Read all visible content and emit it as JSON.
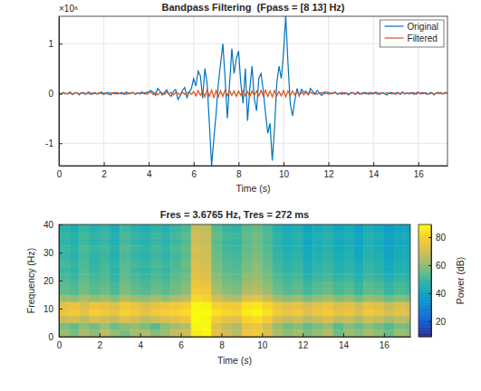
{
  "chart_data": [
    {
      "type": "line",
      "title": "Bandpass Filtering  (Fpass = [8 13] Hz)",
      "x_label": "Time (s)",
      "y_multiplier": "×10⁶",
      "x": [
        0,
        0.1,
        0.2,
        0.3,
        0.4,
        0.5,
        0.6,
        0.7,
        0.8,
        0.9,
        1,
        1.1,
        1.2,
        1.3,
        1.4,
        1.5,
        1.6,
        1.7,
        1.8,
        1.9,
        2,
        2.1,
        2.2,
        2.3,
        2.4,
        2.5,
        2.6,
        2.7,
        2.8,
        2.9,
        3,
        3.1,
        3.2,
        3.3,
        3.4,
        3.5,
        3.6,
        3.7,
        3.8,
        3.9,
        4,
        4.1,
        4.2,
        4.3,
        4.4,
        4.5,
        4.6,
        4.7,
        4.8,
        4.9,
        5,
        5.1,
        5.2,
        5.3,
        5.4,
        5.5,
        5.6,
        5.7,
        5.8,
        5.9,
        6,
        6.1,
        6.2,
        6.3,
        6.4,
        6.5,
        6.6,
        6.7,
        6.8,
        6.9,
        7,
        7.1,
        7.2,
        7.3,
        7.4,
        7.5,
        7.6,
        7.7,
        7.8,
        7.9,
        8,
        8.1,
        8.2,
        8.3,
        8.4,
        8.5,
        8.6,
        8.7,
        8.8,
        8.9,
        9,
        9.1,
        9.2,
        9.3,
        9.4,
        9.5,
        9.6,
        9.7,
        9.8,
        9.9,
        10,
        10.1,
        10.2,
        10.3,
        10.4,
        10.5,
        10.6,
        10.7,
        10.8,
        10.9,
        11,
        11.1,
        11.2,
        11.3,
        11.4,
        11.5,
        11.6,
        11.7,
        11.8,
        11.9,
        12,
        12.1,
        12.2,
        12.3,
        12.4,
        12.5,
        12.6,
        12.7,
        12.8,
        12.9,
        13,
        13.1,
        13.2,
        13.3,
        13.4,
        13.5,
        13.6,
        13.7,
        13.8,
        13.9,
        14,
        14.1,
        14.2,
        14.3,
        14.4,
        14.5,
        14.6,
        14.7,
        14.8,
        14.9,
        15,
        15.1,
        15.2,
        15.3,
        15.4,
        15.5,
        15.6,
        15.7,
        15.8,
        15.9,
        16,
        16.1,
        16.2,
        16.3,
        16.4,
        16.5,
        16.6,
        16.7,
        16.8,
        16.9,
        17,
        17.1,
        17.2,
        17.3
      ],
      "series": [
        {
          "name": "Original",
          "color": "#0072bd",
          "values": [
            0.01,
            -0.02,
            0.02,
            0,
            -0.01,
            0.03,
            -0.02,
            0.01,
            0.02,
            -0.03,
            0.02,
            0,
            -0.02,
            0.03,
            0.01,
            -0.02,
            0.02,
            -0.01,
            0,
            0.03,
            -0.02,
            0.01,
            0.02,
            -0.03,
            0.01,
            0.02,
            -0.01,
            0,
            0.02,
            -0.02,
            0.03,
            -0.01,
            0.01,
            0.02,
            -0.02,
            0.01,
            0,
            0.03,
            -0.01,
            0.02,
            0.03,
            0.06,
            0.02,
            -0.04,
            0.1,
            0.05,
            -0.03,
            0.02,
            0.07,
            -0.02,
            -0.06,
            0.04,
            0.08,
            -0.12,
            -0.05,
            0.06,
            0.12,
            -0.08,
            0.03,
            0.1,
            0.3,
            0.15,
            0.45,
            0.35,
            -0.1,
            0.5,
            0.2,
            -0.6,
            -1.45,
            -0.9,
            -0.4,
            0.2,
            0.6,
            1.0,
            0.3,
            -0.5,
            0.2,
            0.9,
            0.4,
            0.7,
            0.85,
            0.2,
            -0.2,
            0.5,
            -0.55,
            0.1,
            0.55,
            -0.1,
            -0.35,
            0.3,
            0.4,
            0.05,
            -0.4,
            -0.8,
            -0.6,
            -1.35,
            -0.7,
            0.2,
            0.55,
            0.3,
            0.8,
            1.55,
            0.6,
            -0.2,
            -0.45,
            -0.15,
            0.1,
            -0.05,
            0.08,
            0.02,
            0.05,
            -0.03,
            0.1,
            0.04,
            -0.02,
            0.06,
            0.01,
            -0.04,
            0.03,
            0.02,
            0.02,
            -0.01,
            0.01,
            0.03,
            -0.02,
            0,
            0.02,
            -0.01,
            0.01,
            -0.03,
            0.02,
            0.01,
            -0.02,
            0.03,
            0,
            -0.01,
            0.02,
            0.01,
            -0.02,
            0.02,
            -0.01,
            0.03,
            0.01,
            -0.02,
            0.02,
            0,
            -0.03,
            0.01,
            0.02,
            -0.01,
            0.01,
            0.02,
            -0.02,
            0.03,
            -0.01,
            0.01,
            0,
            0.02,
            -0.02,
            0.01,
            0.03,
            -0.01,
            0.02,
            0,
            -0.02,
            0.01,
            0.02,
            -0.03,
            0.01,
            0.02,
            0,
            -0.01,
            0.02,
            0.01
          ]
        },
        {
          "name": "Filtered",
          "color": "#d95319",
          "values": [
            0.01,
            -0.01,
            0.02,
            -0.01,
            0,
            0.01,
            -0.02,
            0.01,
            0.01,
            -0.01,
            0,
            0.02,
            -0.01,
            0.01,
            -0.02,
            0.01,
            0,
            -0.01,
            0.02,
            -0.01,
            0.01,
            0,
            -0.02,
            0.01,
            0.01,
            -0.01,
            0.02,
            0,
            -0.01,
            0.01,
            -0.02,
            0.01,
            0,
            0.02,
            -0.01,
            0.01,
            -0.01,
            0,
            0.02,
            -0.02,
            0.01,
            0.03,
            -0.02,
            0.02,
            -0.03,
            0.02,
            0.01,
            -0.02,
            0.03,
            -0.01,
            0.02,
            -0.03,
            0.02,
            0.01,
            -0.03,
            0.03,
            -0.02,
            0.01,
            0.03,
            -0.02,
            0.04,
            -0.05,
            0.06,
            -0.04,
            0.05,
            -0.07,
            0.08,
            -0.06,
            0.07,
            -0.08,
            0.06,
            -0.07,
            0.05,
            -0.06,
            0.07,
            -0.05,
            0.06,
            -0.04,
            0.05,
            -0.06,
            0.05,
            -0.04,
            0.06,
            -0.05,
            0.04,
            -0.06,
            0.05,
            -0.04,
            0.05,
            -0.05,
            0.06,
            -0.05,
            0.07,
            -0.06,
            0.05,
            -0.07,
            0.06,
            -0.05,
            0.04,
            -0.05,
            0.06,
            -0.07,
            0.05,
            -0.04,
            0.05,
            -0.03,
            0.04,
            -0.03,
            0.02,
            -0.03,
            0.02,
            -0.02,
            0.03,
            -0.01,
            0.02,
            -0.02,
            0.01,
            0.02,
            -0.01,
            0.01,
            -0.02,
            0.01,
            0,
            0.02,
            -0.01,
            0.01,
            -0.02,
            0.01,
            0.01,
            -0.01,
            0,
            0.02,
            -0.01,
            0.01,
            -0.02,
            0.01,
            0,
            -0.01,
            0.02,
            -0.01,
            0.01,
            0,
            -0.02,
            0.01,
            0.01,
            -0.01,
            0.02,
            0,
            -0.01,
            0.01,
            -0.02,
            0.01,
            0,
            0.02,
            -0.01,
            0.01,
            -0.01,
            0,
            0.02,
            -0.02,
            0.01,
            0.01,
            -0.01,
            0.02,
            0,
            -0.01,
            0.01,
            -0.02,
            0.01,
            0,
            0.02,
            -0.01,
            0.01,
            0
          ]
        }
      ],
      "xlim": [
        0,
        17.3
      ],
      "ylim": [
        -1.45,
        1.55
      ],
      "xticks": [
        0,
        2,
        4,
        6,
        8,
        10,
        12,
        14,
        16
      ],
      "yticks": [
        -1,
        0,
        1
      ],
      "grid": true,
      "legend": "upper right"
    },
    {
      "type": "heatmap",
      "title": "Fres = 3.6765 Hz, Tres = 272 ms",
      "x_label": "Time (s)",
      "y_label": "Frequency (Hz)",
      "x_bins": [
        0,
        0.5,
        1,
        1.5,
        2,
        2.5,
        3,
        3.5,
        4,
        4.5,
        5,
        5.5,
        6,
        6.5,
        7,
        7.5,
        8,
        8.5,
        9,
        9.5,
        10,
        10.5,
        11,
        11.5,
        12,
        12.5,
        13,
        13.5,
        14,
        14.5,
        15,
        15.5,
        16,
        16.5,
        17,
        17.5
      ],
      "y_bins": [
        0,
        2.5,
        5,
        7.5,
        10,
        12.5,
        15,
        17.5,
        20,
        22.5,
        25,
        27.5,
        30,
        32.5,
        35,
        37.5,
        40
      ],
      "cells": [
        [
          62,
          58,
          64,
          60,
          66,
          61,
          57,
          63,
          65,
          59,
          62,
          68,
          70,
          86,
          88,
          74,
          70,
          66,
          76,
          78,
          72,
          64,
          60,
          63,
          58,
          61,
          65,
          57,
          62,
          59,
          64,
          60,
          56,
          62,
          60
        ],
        [
          58,
          55,
          60,
          57,
          62,
          56,
          59,
          61,
          58,
          54,
          60,
          63,
          66,
          88,
          90,
          72,
          68,
          64,
          74,
          76,
          70,
          62,
          57,
          60,
          55,
          58,
          61,
          54,
          59,
          56,
          60,
          57,
          53,
          58,
          57
        ],
        [
          68,
          70,
          66,
          71,
          69,
          67,
          72,
          70,
          66,
          69,
          71,
          73,
          76,
          90,
          88,
          78,
          74,
          72,
          80,
          82,
          77,
          70,
          67,
          69,
          65,
          68,
          71,
          66,
          68,
          64,
          69,
          67,
          63,
          66,
          65
        ],
        [
          76,
          78,
          74,
          79,
          77,
          75,
          80,
          78,
          74,
          77,
          79,
          80,
          82,
          92,
          90,
          84,
          81,
          80,
          86,
          88,
          84,
          78,
          75,
          77,
          73,
          76,
          78,
          74,
          76,
          72,
          77,
          75,
          71,
          74,
          73
        ],
        [
          73,
          75,
          71,
          76,
          74,
          72,
          77,
          75,
          71,
          74,
          76,
          77,
          79,
          88,
          87,
          80,
          78,
          77,
          84,
          85,
          81,
          75,
          72,
          74,
          70,
          73,
          75,
          71,
          73,
          69,
          74,
          72,
          68,
          71,
          70
        ],
        [
          62,
          60,
          64,
          61,
          63,
          59,
          65,
          62,
          60,
          63,
          61,
          64,
          67,
          82,
          80,
          70,
          66,
          65,
          72,
          74,
          69,
          63,
          60,
          62,
          58,
          61,
          63,
          59,
          61,
          57,
          62,
          60,
          56,
          59,
          58
        ],
        [
          55,
          53,
          57,
          54,
          56,
          52,
          58,
          55,
          53,
          56,
          54,
          57,
          60,
          78,
          77,
          64,
          60,
          58,
          65,
          66,
          62,
          56,
          53,
          55,
          51,
          54,
          56,
          52,
          54,
          50,
          55,
          53,
          49,
          52,
          51
        ],
        [
          54,
          52,
          56,
          53,
          55,
          51,
          57,
          54,
          52,
          55,
          53,
          56,
          59,
          76,
          75,
          62,
          58,
          57,
          63,
          64,
          60,
          55,
          52,
          54,
          50,
          53,
          55,
          51,
          53,
          49,
          54,
          52,
          48,
          51,
          50
        ],
        [
          52,
          50,
          54,
          51,
          53,
          49,
          55,
          52,
          50,
          53,
          51,
          54,
          57,
          74,
          73,
          60,
          56,
          55,
          60,
          62,
          58,
          53,
          50,
          52,
          47,
          50,
          52,
          48,
          50,
          46,
          51,
          49,
          45,
          48,
          47
        ],
        [
          50,
          48,
          53,
          49,
          52,
          47,
          54,
          50,
          48,
          51,
          49,
          53,
          55,
          72,
          71,
          58,
          54,
          53,
          58,
          60,
          56,
          51,
          48,
          50,
          45,
          48,
          50,
          46,
          48,
          44,
          49,
          47,
          43,
          46,
          45
        ],
        [
          51,
          49,
          52,
          48,
          51,
          48,
          53,
          51,
          49,
          52,
          50,
          52,
          56,
          72,
          70,
          57,
          53,
          52,
          57,
          59,
          55,
          50,
          47,
          49,
          44,
          47,
          49,
          45,
          47,
          43,
          48,
          46,
          42,
          45,
          44
        ],
        [
          49,
          47,
          51,
          48,
          50,
          46,
          52,
          49,
          47,
          50,
          48,
          51,
          54,
          70,
          69,
          56,
          52,
          51,
          56,
          58,
          54,
          49,
          46,
          48,
          43,
          46,
          48,
          44,
          46,
          42,
          47,
          45,
          41,
          44,
          43
        ],
        [
          50,
          48,
          52,
          49,
          51,
          47,
          53,
          50,
          48,
          51,
          49,
          52,
          55,
          71,
          69,
          55,
          51,
          50,
          55,
          57,
          53,
          48,
          45,
          47,
          42,
          45,
          47,
          43,
          45,
          41,
          46,
          44,
          40,
          43,
          42
        ],
        [
          48,
          46,
          50,
          47,
          49,
          45,
          51,
          48,
          46,
          49,
          47,
          50,
          53,
          69,
          68,
          54,
          50,
          49,
          54,
          56,
          52,
          47,
          44,
          46,
          41,
          44,
          46,
          42,
          44,
          40,
          45,
          43,
          39,
          42,
          41
        ],
        [
          49,
          47,
          51,
          48,
          50,
          46,
          52,
          49,
          47,
          50,
          48,
          51,
          54,
          70,
          68,
          55,
          51,
          50,
          55,
          57,
          53,
          48,
          45,
          47,
          42,
          45,
          47,
          43,
          45,
          41,
          46,
          44,
          40,
          43,
          42
        ],
        [
          47,
          45,
          49,
          46,
          48,
          44,
          50,
          47,
          45,
          48,
          46,
          49,
          52,
          68,
          67,
          53,
          49,
          48,
          53,
          55,
          51,
          46,
          43,
          45,
          40,
          43,
          45,
          41,
          43,
          39,
          44,
          42,
          38,
          41,
          40
        ]
      ],
      "xlim": [
        0,
        17.3
      ],
      "ylim": [
        0,
        40
      ],
      "xticks": [
        0,
        2,
        4,
        6,
        8,
        10,
        12,
        14,
        16
      ],
      "yticks": [
        0,
        10,
        20,
        30,
        40
      ],
      "colorbar_label": "Power (dB)",
      "colorbar_range": [
        9,
        89
      ],
      "colorbar_ticks": [
        20,
        40,
        60,
        80
      ]
    }
  ]
}
